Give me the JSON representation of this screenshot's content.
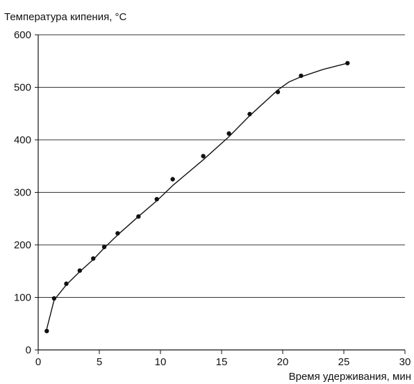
{
  "chart_data": {
    "type": "line",
    "title": "",
    "ylabel": "Температура кипения, °С",
    "xlabel": "Время удерживания, мин",
    "xlim": [
      0,
      30
    ],
    "ylim": [
      0,
      600
    ],
    "x_ticks": [
      0,
      5,
      10,
      15,
      20,
      25,
      30
    ],
    "y_ticks": [
      0,
      100,
      200,
      300,
      400,
      500,
      600
    ],
    "x_tick_labels": [
      "0",
      "5",
      "10",
      "15",
      "20",
      "25",
      "30"
    ],
    "y_tick_labels": [
      "0",
      "100",
      "200",
      "300",
      "400",
      "500",
      "600"
    ],
    "grid": "horizontal",
    "series": [
      {
        "kind": "points",
        "x": [
          0.7,
          1.3,
          2.3,
          3.4,
          4.5,
          5.4,
          6.5,
          8.2,
          9.7,
          11.0,
          13.5,
          15.6,
          17.3,
          19.6,
          21.5,
          25.3
        ],
        "y": [
          36,
          98,
          126,
          151,
          174,
          196,
          222,
          254,
          287,
          325,
          369,
          412,
          449,
          491,
          522,
          546
        ]
      },
      {
        "kind": "curve",
        "x": [
          0.7,
          1.3,
          2.3,
          3.4,
          4.5,
          5.4,
          6.5,
          8.2,
          9.7,
          11.0,
          13.5,
          15.6,
          17.3,
          19.6,
          20.5,
          21.5,
          23.3,
          25.3
        ],
        "y": [
          40,
          95,
          124,
          149,
          172,
          194,
          219,
          254,
          284,
          313,
          362,
          406,
          446,
          495,
          510,
          520,
          534,
          546
        ]
      }
    ],
    "colors": {
      "axis": "#111111",
      "grid": "#333333",
      "line": "#111111",
      "marker": "#111111"
    }
  }
}
